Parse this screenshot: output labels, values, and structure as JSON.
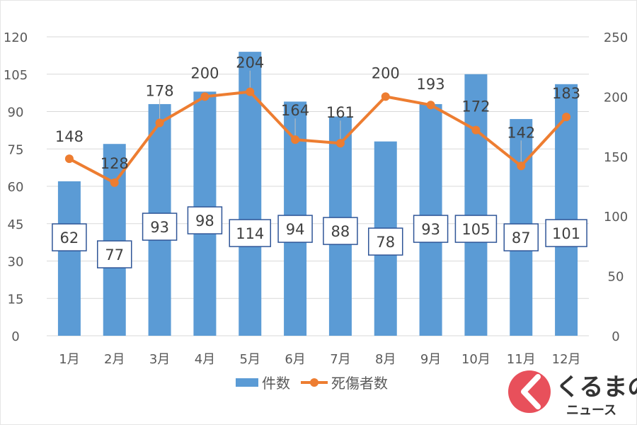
{
  "chart_data": {
    "type": "bar",
    "categories": [
      "1月",
      "2月",
      "3月",
      "4月",
      "5月",
      "6月",
      "7月",
      "8月",
      "9月",
      "10月",
      "11月",
      "12月"
    ],
    "series": [
      {
        "name": "件数",
        "type": "bar",
        "axis": "left",
        "values": [
          62,
          77,
          93,
          98,
          114,
          94,
          88,
          78,
          93,
          105,
          87,
          101
        ]
      },
      {
        "name": "死傷者数",
        "type": "line",
        "axis": "right",
        "values": [
          148,
          128,
          178,
          200,
          204,
          164,
          161,
          200,
          193,
          172,
          142,
          183
        ]
      }
    ],
    "title": "",
    "xlabel": "",
    "ylabel": "",
    "y_left": {
      "range": [
        0,
        120
      ],
      "ticks": [
        0,
        15,
        30,
        45,
        60,
        75,
        90,
        105,
        120
      ]
    },
    "y_right": {
      "range": [
        0,
        250
      ],
      "ticks": [
        0,
        50,
        100,
        150,
        200,
        250
      ]
    },
    "grid": true,
    "legend": "bottom",
    "colors": {
      "bar": "#5b9bd5",
      "line": "#ed7d31",
      "grid": "#d9d9d9",
      "label_border": "#2f5597"
    }
  },
  "logo": {
    "text_main": "くるまの",
    "text_sub": "ニュース",
    "colors": {
      "icon": "#e8505b",
      "text": "#333333"
    }
  }
}
